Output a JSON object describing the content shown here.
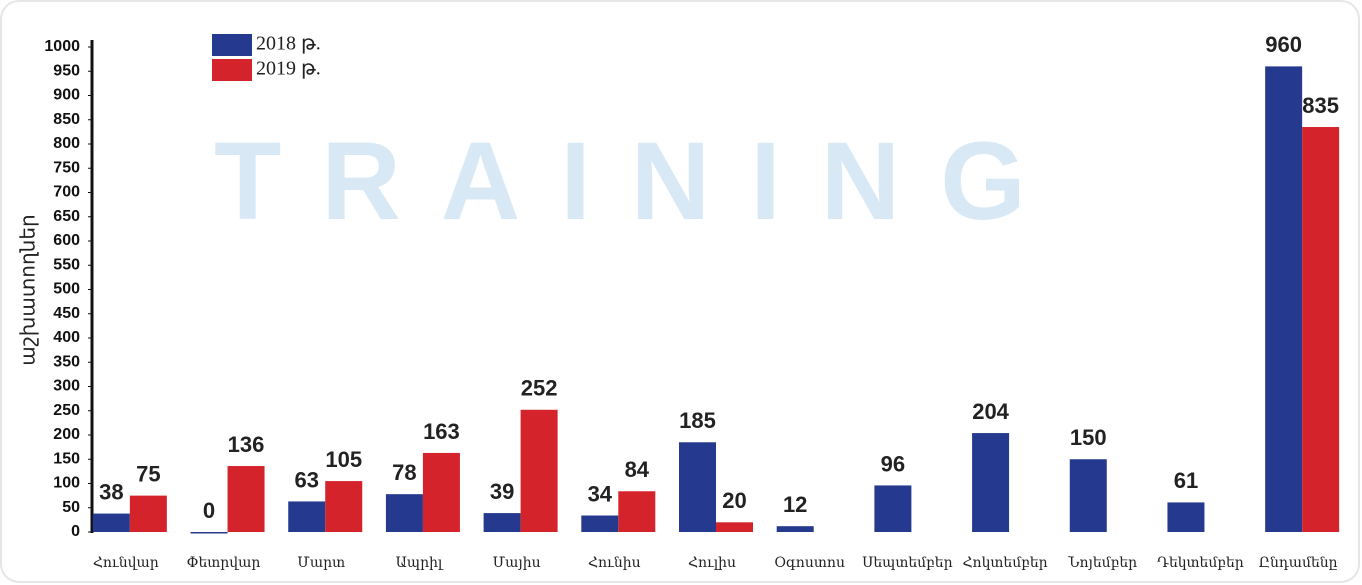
{
  "chart_data": {
    "type": "bar",
    "y_label": "աշխատողներ",
    "watermark": "TRAINING",
    "categories": [
      "Հունվար",
      "Փետրվար",
      "Մարտ",
      "Ապրիլ",
      "Մայիս",
      "Հունիս",
      "Հուլիս",
      "Օգոստոս",
      "Սեպտեմբեր",
      "Հոկտեմբեր",
      "Նոյեմբեր",
      "Դեկտեմբեր",
      "Ընդամենը"
    ],
    "series": [
      {
        "name": "2018 թ.",
        "color": "#253a8e",
        "values": [
          38,
          0,
          63,
          78,
          39,
          34,
          185,
          12,
          96,
          204,
          150,
          61,
          960
        ]
      },
      {
        "name": "2019 թ.",
        "color": "#d5232b",
        "values": [
          75,
          136,
          105,
          163,
          252,
          84,
          20,
          null,
          null,
          null,
          null,
          null,
          835
        ]
      }
    ],
    "ylim": [
      0,
      1000
    ],
    "yticks": [
      0,
      50,
      100,
      150,
      200,
      250,
      300,
      350,
      400,
      450,
      500,
      550,
      600,
      650,
      700,
      750,
      800,
      850,
      900,
      950,
      1000
    ],
    "legend": "top-left"
  }
}
